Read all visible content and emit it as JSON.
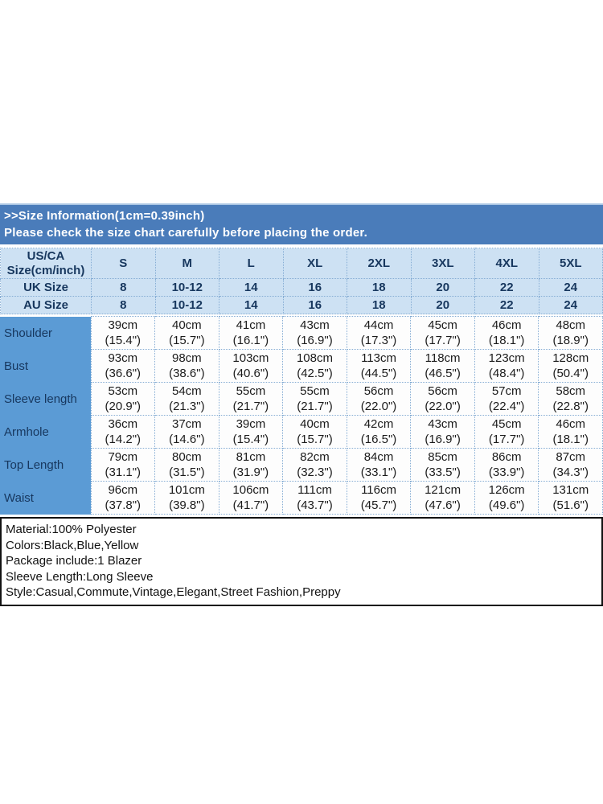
{
  "banner": {
    "title": ">>Size Information(1cm=0.39inch)",
    "subtitle": "Please check the size chart carefully before placing the order."
  },
  "chart_data": {
    "type": "table",
    "title": ">>Size Information(1cm=0.39inch)",
    "note": "Please check the size chart carefully before placing the order.",
    "corner_header": [
      "US/CA",
      "Size(cm/inch)"
    ],
    "size_columns": [
      "S",
      "M",
      "L",
      "XL",
      "2XL",
      "3XL",
      "4XL",
      "5XL"
    ],
    "size_rows": [
      {
        "label": "UK Size",
        "values": [
          "8",
          "10-12",
          "14",
          "16",
          "18",
          "20",
          "22",
          "24"
        ]
      },
      {
        "label": "AU Size",
        "values": [
          "8",
          "10-12",
          "14",
          "16",
          "18",
          "20",
          "22",
          "24"
        ]
      }
    ],
    "measurement_rows": [
      {
        "label": "Shoulder",
        "cm": [
          "39cm",
          "40cm",
          "41cm",
          "43cm",
          "44cm",
          "45cm",
          "46cm",
          "48cm"
        ],
        "inch": [
          "(15.4\")",
          "(15.7\")",
          "(16.1\")",
          "(16.9\")",
          "(17.3\")",
          "(17.7\")",
          "(18.1\")",
          "(18.9\")"
        ]
      },
      {
        "label": "Bust",
        "cm": [
          "93cm",
          "98cm",
          "103cm",
          "108cm",
          "113cm",
          "118cm",
          "123cm",
          "128cm"
        ],
        "inch": [
          "(36.6\")",
          "(38.6\")",
          "(40.6\")",
          "(42.5\")",
          "(44.5\")",
          "(46.5\")",
          "(48.4\")",
          "(50.4\")"
        ]
      },
      {
        "label": "Sleeve length",
        "cm": [
          "53cm",
          "54cm",
          "55cm",
          "55cm",
          "56cm",
          "56cm",
          "57cm",
          "58cm"
        ],
        "inch": [
          "(20.9\")",
          "(21.3\")",
          "(21.7\")",
          "(21.7\")",
          "(22.0\")",
          "(22.0\")",
          "(22.4\")",
          "(22.8\")"
        ]
      },
      {
        "label": "Armhole",
        "cm": [
          "36cm",
          "37cm",
          "39cm",
          "40cm",
          "42cm",
          "43cm",
          "45cm",
          "46cm"
        ],
        "inch": [
          "(14.2\")",
          "(14.6\")",
          "(15.4\")",
          "(15.7\")",
          "(16.5\")",
          "(16.9\")",
          "(17.7\")",
          "(18.1\")"
        ]
      },
      {
        "label": "Top Length",
        "cm": [
          "79cm",
          "80cm",
          "81cm",
          "82cm",
          "84cm",
          "85cm",
          "86cm",
          "87cm"
        ],
        "inch": [
          "(31.1\")",
          "(31.5\")",
          "(31.9\")",
          "(32.3\")",
          "(33.1\")",
          "(33.5\")",
          "(33.9\")",
          "(34.3\")"
        ]
      },
      {
        "label": "Waist",
        "cm": [
          "96cm",
          "101cm",
          "106cm",
          "111cm",
          "116cm",
          "121cm",
          "126cm",
          "131cm"
        ],
        "inch": [
          "(37.8\")",
          "(39.8\")",
          "(41.7\")",
          "(43.7\")",
          "(45.7\")",
          "(47.6\")",
          "(49.6\")",
          "(51.6\")"
        ]
      }
    ]
  },
  "details": {
    "lines": [
      "Material:100% Polyester",
      "Colors:Black,Blue,Yellow",
      "Package include:1 Blazer",
      "Sleeve Length:Long Sleeve",
      "Style:Casual,Commute,Vintage,Elegant,Street Fashion,Preppy"
    ]
  },
  "colors": {
    "banner_bg": "#4a7cba",
    "banner_text": "#ffffff",
    "header_bg": "#cde1f3",
    "label_column_bg": "#5b9bd5",
    "header_text": "#17375e",
    "grid_dotted": "#86add4",
    "details_border": "#121212"
  }
}
